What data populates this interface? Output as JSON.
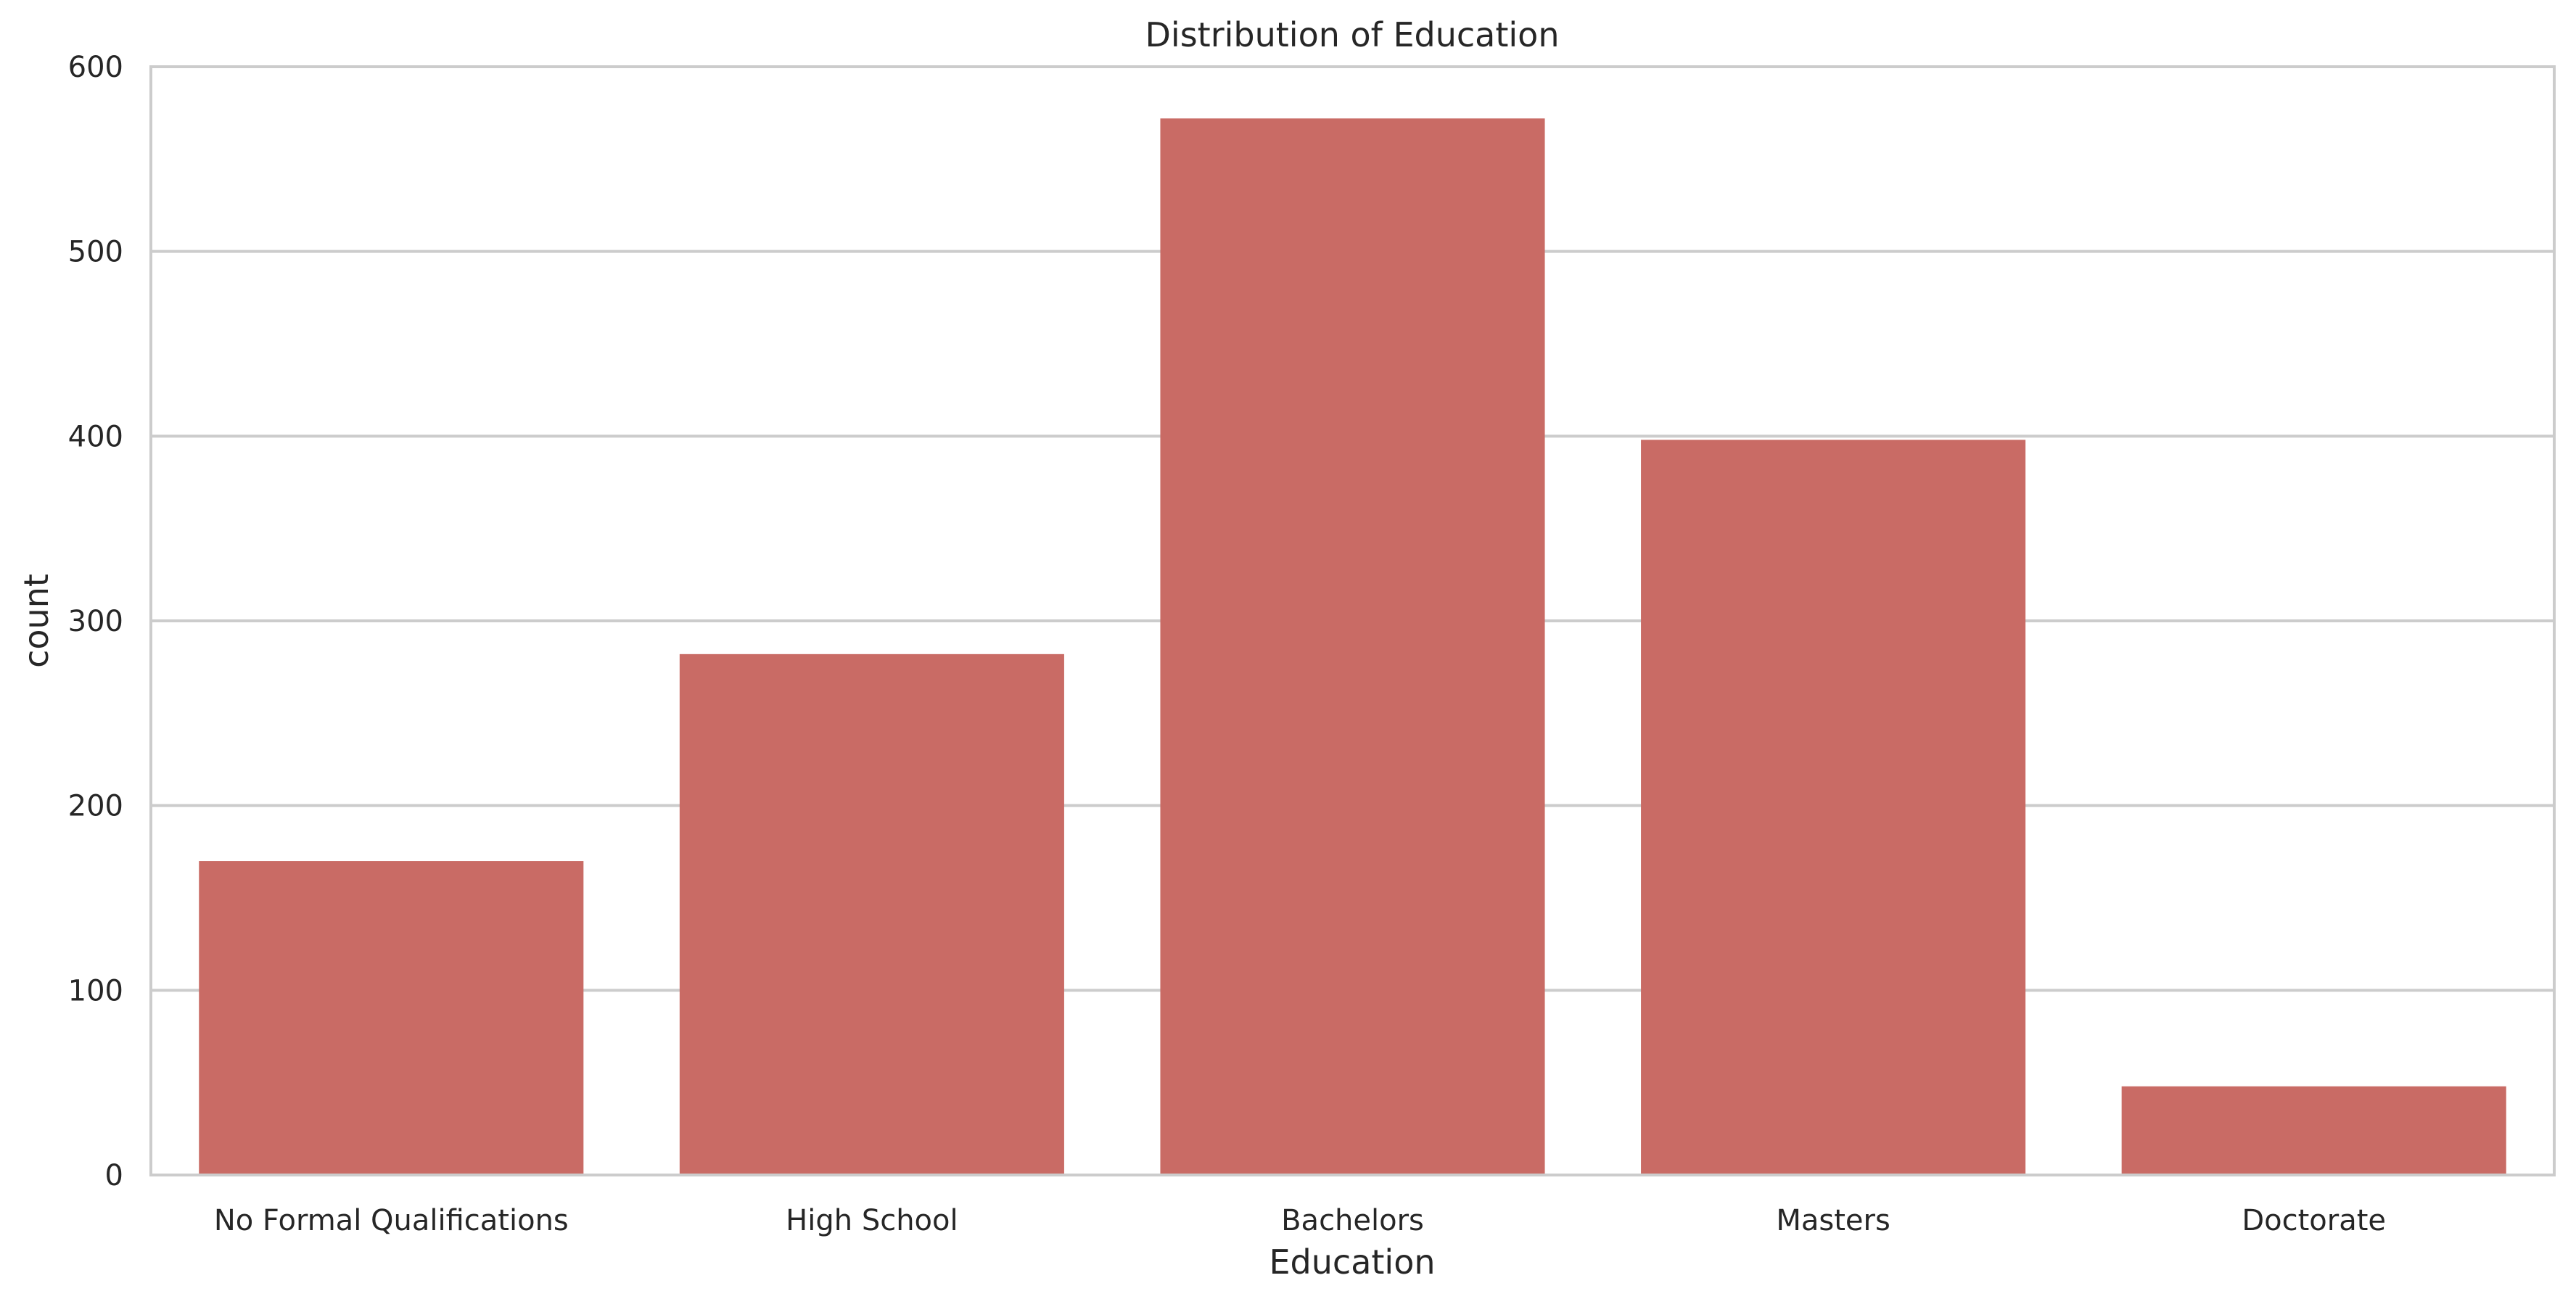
{
  "chart_data": {
    "type": "bar",
    "title": "Distribution of Education",
    "xlabel": "Education",
    "ylabel": "count",
    "categories": [
      "No Formal Qualifications",
      "High School",
      "Bachelors",
      "Masters",
      "Doctorate"
    ],
    "values": [
      170,
      282,
      572,
      398,
      48
    ],
    "ylim": [
      0,
      600
    ],
    "yticks": [
      0,
      100,
      200,
      300,
      400,
      500,
      600
    ],
    "grid": "horizontal",
    "bar_color": "#c96b65",
    "grid_color": "#cccccc"
  }
}
